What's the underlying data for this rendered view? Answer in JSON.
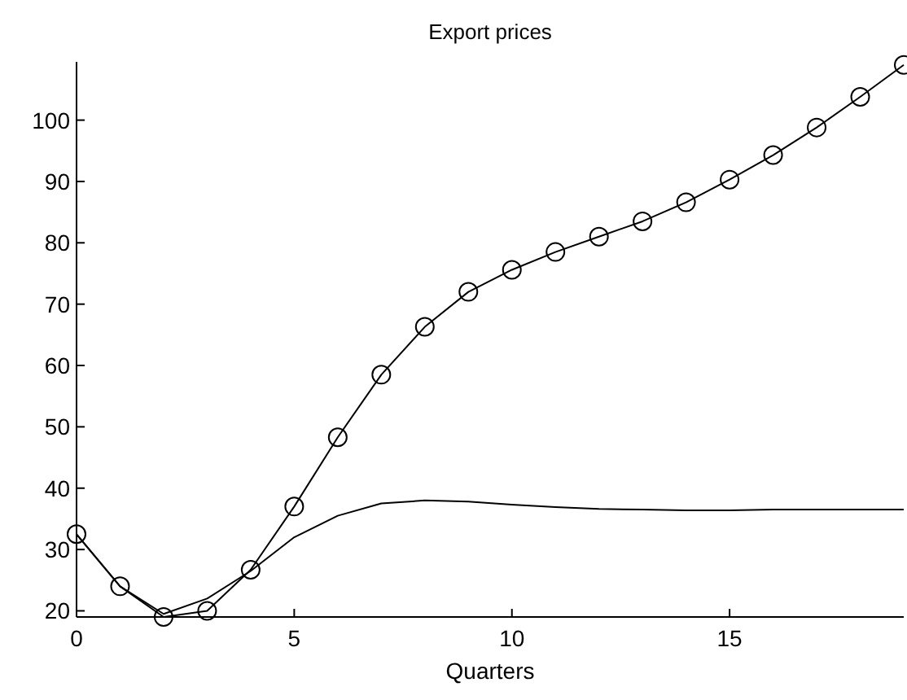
{
  "chart_data": {
    "type": "line",
    "title": "Export prices",
    "xlabel": "Quarters",
    "x": [
      0,
      1,
      2,
      3,
      4,
      5,
      6,
      7,
      8,
      9,
      10,
      11,
      12,
      13,
      14,
      15,
      16,
      17,
      18,
      19
    ],
    "series": [
      {
        "color": "#000000",
        "marker": "circle",
        "values": [
          32.5,
          24,
          19,
          20,
          26.7,
          37,
          48.3,
          58.5,
          66.3,
          72,
          75.6,
          78.5,
          81,
          83.5,
          86.6,
          90.3,
          94.3,
          98.8,
          103.8,
          109
        ]
      },
      {
        "color": "#000000",
        "marker": "none",
        "values": [
          32.5,
          24,
          19.5,
          22,
          26.5,
          32,
          35.5,
          37.5,
          38,
          37.8,
          37.3,
          36.9,
          36.6,
          36.5,
          36.4,
          36.4,
          36.5,
          36.5,
          36.5,
          36.5
        ]
      }
    ],
    "xlim": [
      0,
      19
    ],
    "ylim": [
      19,
      109.5
    ],
    "xticks": [
      0,
      5,
      10,
      15
    ],
    "yticks": [
      20,
      30,
      40,
      50,
      60,
      70,
      80,
      90,
      100
    ],
    "grid": false
  }
}
